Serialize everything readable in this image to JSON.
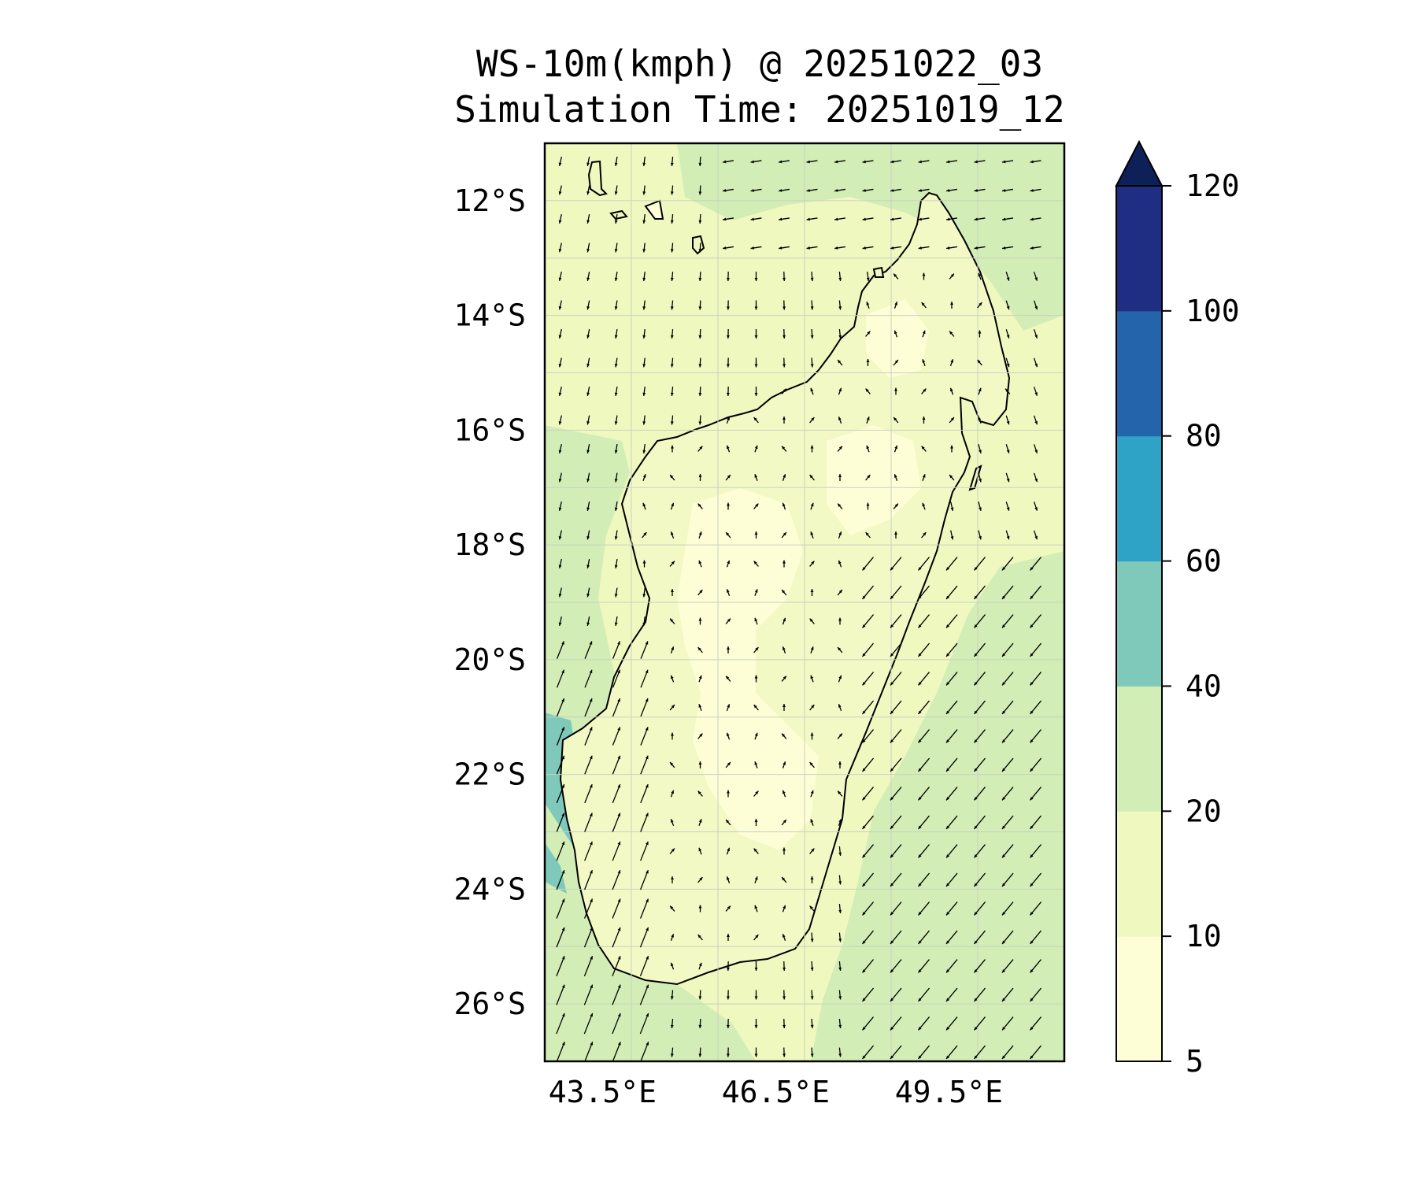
{
  "title": {
    "line1": "WS-10m(kmph) @ 20251022_03",
    "line2": "Simulation Time: 20251019_12"
  },
  "chart_data": {
    "type": "heatmap",
    "title": "WS-10m(kmph) @ 20251022_03",
    "subtitle": "Simulation Time: 20251019_12",
    "variable": "WS-10m(kmph)",
    "x_axis": {
      "ticks": [
        "43.5°E",
        "46.5°E",
        "49.5°E"
      ],
      "tick_values": [
        43.5,
        46.5,
        49.5
      ],
      "range": [
        42.5,
        51.5
      ]
    },
    "y_axis": {
      "ticks": [
        "12°S",
        "14°S",
        "16°S",
        "18°S",
        "20°S",
        "22°S",
        "24°S",
        "26°S"
      ],
      "tick_values": [
        -12,
        -14,
        -16,
        -18,
        -20,
        -22,
        -24,
        -26
      ],
      "range": [
        -27.0,
        -11.0
      ]
    },
    "grid": true,
    "overlay": "wind vectors (arrows)",
    "colorbar": {
      "position": "right",
      "extend": "max",
      "levels": [
        5,
        10,
        20,
        40,
        60,
        80,
        100,
        120
      ],
      "labels": [
        "5",
        "10",
        "20",
        "40",
        "60",
        "80",
        "100",
        "120"
      ],
      "colors": [
        "#ffffd9",
        "#edf8b1",
        "#c7e9b4",
        "#7fcdbb",
        "#2ca6c6",
        "#2166ac",
        "#1e2f86",
        "#0b1f57"
      ],
      "band_colors": [
        "#fefed6",
        "#eff8bf",
        "#d2edb6",
        "#7fc9bb",
        "#2ea3c6",
        "#2364ab",
        "#1f2e82",
        "#0d2058"
      ]
    }
  }
}
